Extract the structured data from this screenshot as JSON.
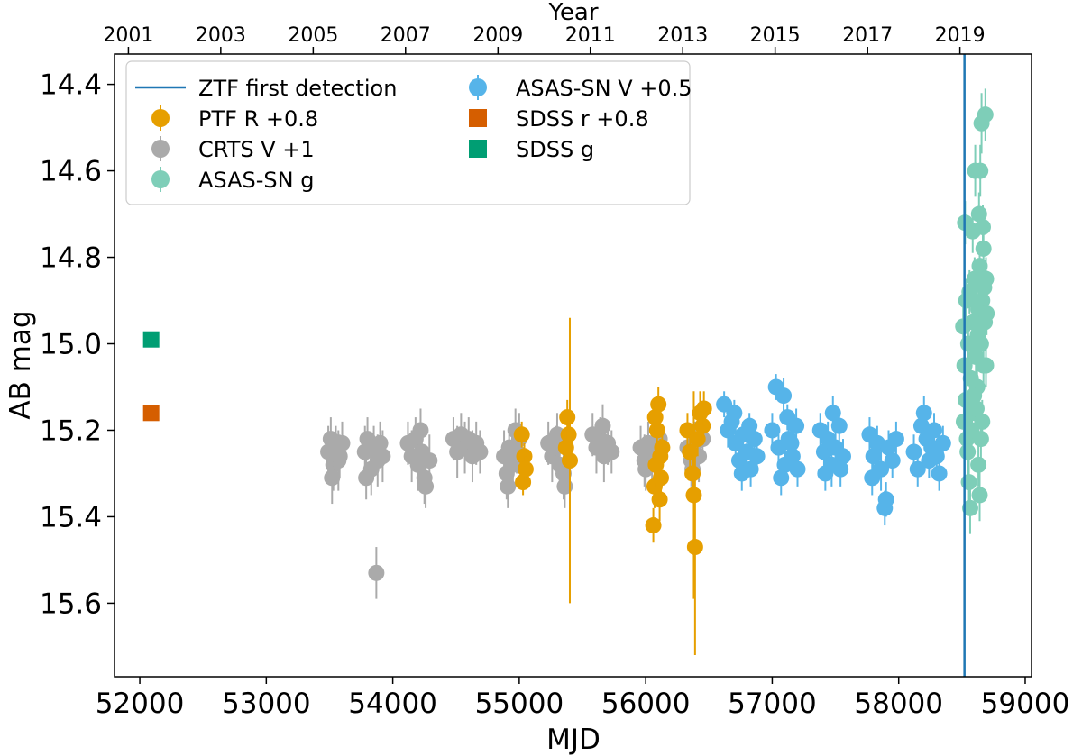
{
  "chart_data": {
    "type": "scatter",
    "title": "",
    "xlabel": "MJD",
    "ylabel": "AB mag",
    "top_axis_label": "Year",
    "xlim": [
      51800,
      59050
    ],
    "ylim": [
      15.77,
      14.33
    ],
    "y_inverted": true,
    "x_ticks": [
      52000,
      53000,
      54000,
      55000,
      56000,
      57000,
      58000,
      59000
    ],
    "y_ticks": [
      14.4,
      14.6,
      14.8,
      15.0,
      15.2,
      15.4,
      15.6
    ],
    "top_ticks": [
      {
        "label": "2001",
        "mjd": 51910
      },
      {
        "label": "2003",
        "mjd": 52640
      },
      {
        "label": "2005",
        "mjd": 53371
      },
      {
        "label": "2007",
        "mjd": 54101
      },
      {
        "label": "2009",
        "mjd": 54832
      },
      {
        "label": "2011",
        "mjd": 55562
      },
      {
        "label": "2013",
        "mjd": 56293
      },
      {
        "label": "2015",
        "mjd": 57023
      },
      {
        "label": "2017",
        "mjd": 57754
      },
      {
        "label": "2019",
        "mjd": 58484
      }
    ],
    "vline": {
      "name": "ZTF first detection",
      "x": 58520,
      "color": "#1f77b4"
    },
    "legend": {
      "placement": "top-left",
      "entries": [
        {
          "label": "ZTF first detection",
          "marker": "line",
          "color": "#1f77b4"
        },
        {
          "label": "PTF R +0.8",
          "marker": "circle",
          "color": "#e69f00"
        },
        {
          "label": "CRTS V +1",
          "marker": "circle",
          "color": "#aaaaaa"
        },
        {
          "label": "ASAS-SN g",
          "marker": "circle",
          "color": "#009e73",
          "alpha": 0.5
        },
        {
          "label": "ASAS-SN V +0.5",
          "marker": "circle",
          "color": "#56b4e9"
        },
        {
          "label": "SDSS r +0.8",
          "marker": "square",
          "color": "#d55e00"
        },
        {
          "label": "SDSS g",
          "marker": "square",
          "color": "#009e73"
        }
      ]
    },
    "series": [
      {
        "name": "CRTS V +1",
        "marker": "circle",
        "color": "#aaaaaa",
        "alpha": 1.0,
        "points": [
          [
            53490,
            15.25,
            0.06
          ],
          [
            53510,
            15.22,
            0.05
          ],
          [
            53530,
            15.28,
            0.06
          ],
          [
            53550,
            15.24,
            0.05
          ],
          [
            53570,
            15.27,
            0.07
          ],
          [
            53600,
            15.23,
            0.05
          ],
          [
            53520,
            15.31,
            0.06
          ],
          [
            53580,
            15.26,
            0.05
          ],
          [
            53780,
            15.25,
            0.06
          ],
          [
            53800,
            15.22,
            0.05
          ],
          [
            53830,
            15.29,
            0.06
          ],
          [
            53850,
            15.24,
            0.05
          ],
          [
            53880,
            15.27,
            0.06
          ],
          [
            53900,
            15.23,
            0.05
          ],
          [
            53920,
            15.26,
            0.06
          ],
          [
            53790,
            15.31,
            0.05
          ],
          [
            53870,
            15.53,
            0.06
          ],
          [
            54120,
            15.23,
            0.05
          ],
          [
            54150,
            15.26,
            0.06
          ],
          [
            54180,
            15.22,
            0.05
          ],
          [
            54200,
            15.28,
            0.06
          ],
          [
            54230,
            15.25,
            0.05
          ],
          [
            54260,
            15.33,
            0.05
          ],
          [
            54250,
            15.31,
            0.06
          ],
          [
            54290,
            15.27,
            0.06
          ],
          [
            54220,
            15.2,
            0.05
          ],
          [
            54480,
            15.22,
            0.05
          ],
          [
            54510,
            15.25,
            0.06
          ],
          [
            54540,
            15.21,
            0.05
          ],
          [
            54570,
            15.24,
            0.06
          ],
          [
            54600,
            15.22,
            0.05
          ],
          [
            54630,
            15.26,
            0.06
          ],
          [
            54660,
            15.23,
            0.05
          ],
          [
            54690,
            15.25,
            0.05
          ],
          [
            54880,
            15.26,
            0.06
          ],
          [
            54900,
            15.3,
            0.06
          ],
          [
            54920,
            15.24,
            0.05
          ],
          [
            54950,
            15.28,
            0.06
          ],
          [
            54980,
            15.25,
            0.05
          ],
          [
            55000,
            15.22,
            0.06
          ],
          [
            54910,
            15.33,
            0.05
          ],
          [
            54970,
            15.2,
            0.05
          ],
          [
            55230,
            15.23,
            0.05
          ],
          [
            55260,
            15.26,
            0.06
          ],
          [
            55290,
            15.24,
            0.05
          ],
          [
            55320,
            15.28,
            0.06
          ],
          [
            55350,
            15.3,
            0.06
          ],
          [
            55360,
            15.33,
            0.05
          ],
          [
            55300,
            15.21,
            0.05
          ],
          [
            55580,
            15.21,
            0.05
          ],
          [
            55610,
            15.24,
            0.06
          ],
          [
            55640,
            15.22,
            0.05
          ],
          [
            55670,
            15.26,
            0.06
          ],
          [
            55700,
            15.23,
            0.05
          ],
          [
            55730,
            15.25,
            0.05
          ],
          [
            55660,
            15.19,
            0.05
          ],
          [
            55960,
            15.24,
            0.05
          ],
          [
            55990,
            15.27,
            0.06
          ],
          [
            56020,
            15.23,
            0.05
          ],
          [
            56050,
            15.26,
            0.06
          ],
          [
            56080,
            15.24,
            0.05
          ],
          [
            56110,
            15.22,
            0.05
          ],
          [
            56000,
            15.29,
            0.05
          ],
          [
            56330,
            15.24,
            0.05
          ],
          [
            56360,
            15.27,
            0.06
          ],
          [
            56390,
            15.23,
            0.05
          ],
          [
            56420,
            15.26,
            0.06
          ],
          [
            56450,
            15.22,
            0.05
          ],
          [
            56370,
            15.29,
            0.05
          ]
        ]
      },
      {
        "name": "PTF R +0.8",
        "marker": "circle",
        "color": "#e69f00",
        "alpha": 1.0,
        "points": [
          [
            55020,
            15.21,
            0.03
          ],
          [
            55040,
            15.26,
            0.03
          ],
          [
            55030,
            15.32,
            0.03
          ],
          [
            55050,
            15.29,
            0.03
          ],
          [
            55380,
            15.17,
            0.04
          ],
          [
            55390,
            15.21,
            0.04
          ],
          [
            55400,
            15.27,
            0.33
          ],
          [
            55370,
            15.24,
            0.04
          ],
          [
            56060,
            15.42,
            0.04
          ],
          [
            56070,
            15.33,
            0.05
          ],
          [
            56080,
            15.28,
            0.05
          ],
          [
            56090,
            15.2,
            0.04
          ],
          [
            56100,
            15.14,
            0.04
          ],
          [
            56110,
            15.36,
            0.05
          ],
          [
            56120,
            15.31,
            0.04
          ],
          [
            56130,
            15.24,
            0.04
          ],
          [
            56075,
            15.17,
            0.04
          ],
          [
            56115,
            15.26,
            0.04
          ],
          [
            56330,
            15.2,
            0.04
          ],
          [
            56350,
            15.25,
            0.04
          ],
          [
            56370,
            15.3,
            0.04
          ],
          [
            56390,
            15.47,
            0.25
          ],
          [
            56410,
            15.22,
            0.04
          ],
          [
            56430,
            15.16,
            0.05
          ],
          [
            56450,
            15.19,
            0.04
          ],
          [
            56380,
            15.35,
            0.24
          ],
          [
            56460,
            15.15,
            0.04
          ]
        ]
      },
      {
        "name": "ASAS-SN V +0.5",
        "marker": "circle",
        "color": "#56b4e9",
        "alpha": 1.0,
        "points": [
          [
            56620,
            15.14,
            0.03
          ],
          [
            56650,
            15.2,
            0.04
          ],
          [
            56680,
            15.18,
            0.03
          ],
          [
            56710,
            15.23,
            0.04
          ],
          [
            56740,
            15.27,
            0.04
          ],
          [
            56770,
            15.21,
            0.03
          ],
          [
            56800,
            15.25,
            0.04
          ],
          [
            56830,
            15.29,
            0.04
          ],
          [
            56860,
            15.22,
            0.04
          ],
          [
            56880,
            15.26,
            0.04
          ],
          [
            56700,
            15.16,
            0.03
          ],
          [
            56760,
            15.3,
            0.04
          ],
          [
            56820,
            15.19,
            0.03
          ],
          [
            57030,
            15.1,
            0.03
          ],
          [
            57090,
            15.12,
            0.04
          ],
          [
            57050,
            15.24,
            0.04
          ],
          [
            57000,
            15.2,
            0.04
          ],
          [
            57100,
            15.28,
            0.04
          ],
          [
            57130,
            15.22,
            0.04
          ],
          [
            57160,
            15.26,
            0.04
          ],
          [
            57190,
            15.19,
            0.04
          ],
          [
            57070,
            15.31,
            0.04
          ],
          [
            57150,
            15.23,
            0.04
          ],
          [
            57200,
            15.29,
            0.04
          ],
          [
            57120,
            15.17,
            0.03
          ],
          [
            57380,
            15.2,
            0.04
          ],
          [
            57410,
            15.25,
            0.04
          ],
          [
            57440,
            15.22,
            0.04
          ],
          [
            57470,
            15.28,
            0.05
          ],
          [
            57500,
            15.24,
            0.04
          ],
          [
            57530,
            15.19,
            0.04
          ],
          [
            57560,
            15.26,
            0.04
          ],
          [
            57420,
            15.3,
            0.04
          ],
          [
            57480,
            15.16,
            0.04
          ],
          [
            57540,
            15.29,
            0.04
          ],
          [
            57770,
            15.21,
            0.04
          ],
          [
            57800,
            15.26,
            0.04
          ],
          [
            57830,
            15.23,
            0.04
          ],
          [
            57860,
            15.29,
            0.05
          ],
          [
            57890,
            15.38,
            0.04
          ],
          [
            57900,
            15.36,
            0.04
          ],
          [
            57920,
            15.24,
            0.04
          ],
          [
            57950,
            15.27,
            0.04
          ],
          [
            57980,
            15.22,
            0.04
          ],
          [
            57790,
            15.31,
            0.04
          ],
          [
            58120,
            15.25,
            0.04
          ],
          [
            58150,
            15.29,
            0.04
          ],
          [
            58180,
            15.19,
            0.04
          ],
          [
            58200,
            15.16,
            0.04
          ],
          [
            58220,
            15.22,
            0.04
          ],
          [
            58240,
            15.27,
            0.04
          ],
          [
            58260,
            15.24,
            0.04
          ],
          [
            58280,
            15.2,
            0.04
          ],
          [
            58300,
            15.26,
            0.04
          ],
          [
            58320,
            15.3,
            0.04
          ],
          [
            58350,
            15.23,
            0.04
          ]
        ]
      },
      {
        "name": "ASAS-SN g",
        "marker": "circle",
        "color": "#009e73",
        "alpha": 0.5,
        "points": [
          [
            58510,
            14.96,
            0.05
          ],
          [
            58520,
            15.05,
            0.05
          ],
          [
            58530,
            15.13,
            0.05
          ],
          [
            58540,
            15.22,
            0.05
          ],
          [
            58550,
            15.0,
            0.05
          ],
          [
            58560,
            14.88,
            0.05
          ],
          [
            58570,
            15.08,
            0.05
          ],
          [
            58580,
            15.16,
            0.05
          ],
          [
            58590,
            14.95,
            0.05
          ],
          [
            58600,
            14.85,
            0.05
          ],
          [
            58610,
            15.03,
            0.05
          ],
          [
            58620,
            15.1,
            0.05
          ],
          [
            58630,
            14.92,
            0.05
          ],
          [
            58640,
            14.82,
            0.05
          ],
          [
            58650,
            15.0,
            0.05
          ],
          [
            58660,
            14.9,
            0.05
          ],
          [
            58670,
            14.78,
            0.05
          ],
          [
            58680,
            14.95,
            0.05
          ],
          [
            58525,
            14.72,
            0.05
          ],
          [
            58535,
            14.9,
            0.05
          ],
          [
            58545,
            15.25,
            0.06
          ],
          [
            58555,
            15.32,
            0.06
          ],
          [
            58565,
            15.38,
            0.06
          ],
          [
            58575,
            15.2,
            0.06
          ],
          [
            58585,
            14.74,
            0.05
          ],
          [
            58595,
            15.12,
            0.05
          ],
          [
            58605,
            14.6,
            0.06
          ],
          [
            58615,
            15.15,
            0.05
          ],
          [
            58625,
            14.98,
            0.05
          ],
          [
            58635,
            14.7,
            0.05
          ],
          [
            58645,
            14.6,
            0.06
          ],
          [
            58655,
            14.49,
            0.07
          ],
          [
            58665,
            14.73,
            0.05
          ],
          [
            58675,
            14.87,
            0.05
          ],
          [
            58685,
            14.47,
            0.06
          ],
          [
            58630,
            15.28,
            0.05
          ],
          [
            58640,
            15.35,
            0.06
          ],
          [
            58650,
            15.22,
            0.06
          ],
          [
            58660,
            15.18,
            0.05
          ],
          [
            58670,
            15.05,
            0.05
          ],
          [
            58690,
            14.85,
            0.05
          ],
          [
            58695,
            14.93,
            0.05
          ],
          [
            58515,
            15.18,
            0.05
          ],
          [
            58690,
            15.05,
            0.05
          ]
        ]
      },
      {
        "name": "SDSS r +0.8",
        "marker": "square",
        "color": "#d55e00",
        "alpha": 1.0,
        "points": [
          [
            52090,
            15.16,
            0.0
          ]
        ]
      },
      {
        "name": "SDSS g",
        "marker": "square",
        "color": "#009e73",
        "alpha": 1.0,
        "points": [
          [
            52090,
            14.99,
            0.0
          ]
        ]
      }
    ]
  }
}
